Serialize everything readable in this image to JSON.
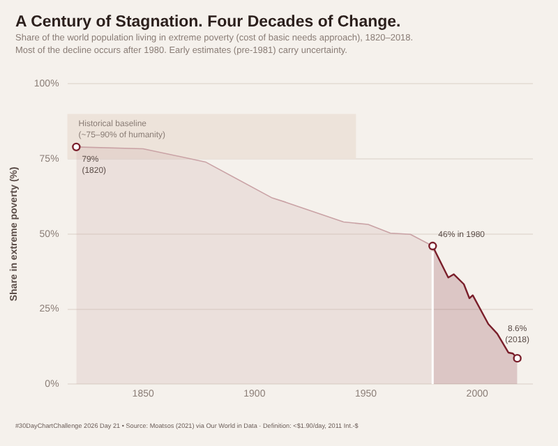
{
  "chart_data": {
    "type": "area",
    "title": "A Century of Stagnation. Four Decades of Change.",
    "subtitle": "Share of the world population living in extreme poverty (cost of basic needs approach), 1820–2018.\nMost of the decline occurs after 1980. Early estimates (pre-1981) carry uncertainty.",
    "ylabel": "Share in extreme poverty (%)",
    "series": [
      {
        "color": "#c9a2a5",
        "x": [
          1820,
          1850,
          1878,
          1908,
          1914,
          1940,
          1951,
          1961,
          1970,
          1980
        ],
        "values": [
          79,
          78.4,
          74,
          62,
          60.6,
          54,
          53.2,
          50.3,
          49.9,
          46
        ]
      },
      {
        "color": "#7a1f2b",
        "x": [
          1980,
          1981.5,
          1987,
          1989.5,
          1994,
          1996.5,
          1998,
          2005,
          2009,
          2014,
          2016,
          2018
        ],
        "values": [
          46,
          43.7,
          35.5,
          36.6,
          33.3,
          28.6,
          29.6,
          20,
          16.8,
          10.5,
          10.2,
          8.6
        ]
      },
      {
        "type": "scatter",
        "marker": "circle",
        "color": "#7a1f2b",
        "x": [
          1820,
          1980,
          2018
        ],
        "values": [
          79,
          46,
          8.6
        ]
      }
    ],
    "xlim": [
      1816,
      2025
    ],
    "xticks": [
      1850,
      1900,
      1950,
      2000
    ],
    "ylim": [
      0,
      100
    ],
    "yticks": [
      {
        "value": 0,
        "label": "0%"
      },
      {
        "value": 25,
        "label": "25%"
      },
      {
        "value": 50,
        "label": "50%"
      },
      {
        "value": 75,
        "label": "75%"
      },
      {
        "value": 100,
        "label": "100%"
      }
    ],
    "grid": "y",
    "legend": false,
    "bands": [
      {
        "axis": "y",
        "from": 75,
        "to": 90,
        "label": "Historical baseline\n(~75–90% of humanity)",
        "color": "#ede3da"
      }
    ],
    "ref_lines": [
      {
        "axis": "x",
        "value": 1980,
        "color": "#ffffff"
      }
    ],
    "annotations": [
      {
        "text": "79%\n(1820)",
        "x": 1820,
        "y": 79
      },
      {
        "text": "46% in 1980",
        "x": 1980,
        "y": 46
      },
      {
        "text": "8.6%\n(2018)",
        "x": 2018,
        "y": 8.6
      },
      "#30DayChartChallenge 2026 Day 21 • Source: Moatsos (2021) via Our World in Data · Definition: <$1.90/day, 2011 Int.-$"
    ]
  }
}
